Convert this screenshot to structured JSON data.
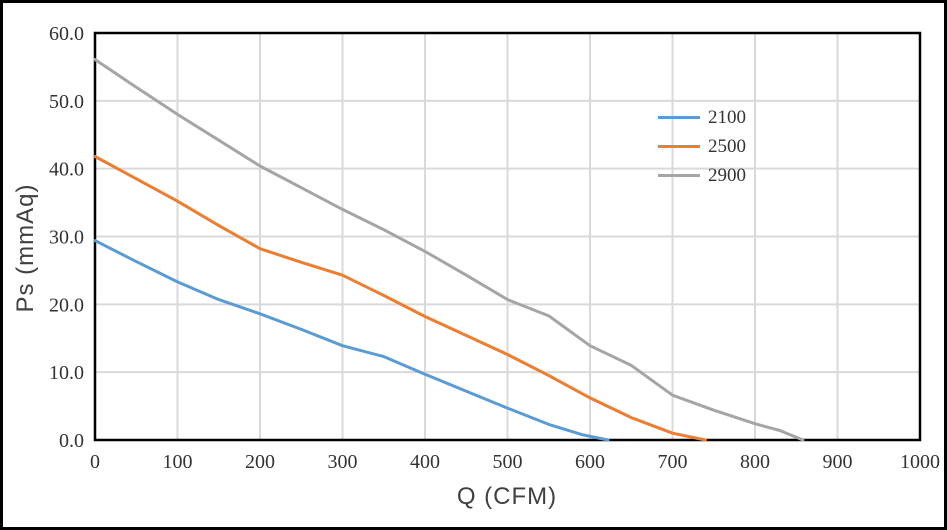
{
  "chart_data": {
    "type": "line",
    "title": "",
    "xlabel": "Q（CFM）",
    "ylabel": "Ps（mmAq）",
    "xlim": [
      0,
      1000
    ],
    "ylim": [
      0,
      60
    ],
    "xticks": [
      0,
      100,
      200,
      300,
      400,
      500,
      600,
      700,
      800,
      900,
      1000
    ],
    "xtick_labels": [
      "0",
      "100",
      "200",
      "300",
      "400",
      "500",
      "600",
      "700",
      "800",
      "900",
      "1000"
    ],
    "yticks": [
      0,
      10,
      20,
      30,
      40,
      50,
      60
    ],
    "ytick_labels": [
      "0.0",
      "10.0",
      "20.0",
      "30.0",
      "40.0",
      "50.0",
      "60.0"
    ],
    "grid": true,
    "legend_position": "inside-upper-right",
    "series": [
      {
        "name": "2100",
        "color": "#5B9BD5",
        "points": [
          [
            0,
            29.4
          ],
          [
            50,
            26.3
          ],
          [
            100,
            23.3
          ],
          [
            150,
            20.7
          ],
          [
            200,
            18.6
          ],
          [
            250,
            16.3
          ],
          [
            300,
            13.9
          ],
          [
            350,
            12.3
          ],
          [
            400,
            9.7
          ],
          [
            450,
            7.2
          ],
          [
            500,
            4.7
          ],
          [
            550,
            2.3
          ],
          [
            590,
            0.8
          ],
          [
            622,
            0
          ]
        ]
      },
      {
        "name": "2500",
        "color": "#ED7D31",
        "points": [
          [
            0,
            41.8
          ],
          [
            50,
            38.5
          ],
          [
            100,
            35.2
          ],
          [
            150,
            31.6
          ],
          [
            200,
            28.2
          ],
          [
            250,
            26.2
          ],
          [
            300,
            24.3
          ],
          [
            350,
            21.3
          ],
          [
            400,
            18.2
          ],
          [
            450,
            15.4
          ],
          [
            500,
            12.6
          ],
          [
            550,
            9.5
          ],
          [
            600,
            6.2
          ],
          [
            650,
            3.3
          ],
          [
            700,
            1.0
          ],
          [
            740,
            0
          ]
        ]
      },
      {
        "name": "2900",
        "color": "#A5A5A5",
        "points": [
          [
            0,
            56.1
          ],
          [
            50,
            52.0
          ],
          [
            100,
            48.0
          ],
          [
            150,
            44.2
          ],
          [
            200,
            40.4
          ],
          [
            250,
            37.2
          ],
          [
            300,
            34.0
          ],
          [
            350,
            31.0
          ],
          [
            400,
            27.8
          ],
          [
            450,
            24.3
          ],
          [
            500,
            20.7
          ],
          [
            550,
            18.3
          ],
          [
            600,
            13.9
          ],
          [
            650,
            11.0
          ],
          [
            700,
            6.6
          ],
          [
            750,
            4.4
          ],
          [
            800,
            2.4
          ],
          [
            830,
            1.4
          ],
          [
            858,
            0
          ]
        ]
      }
    ]
  },
  "colors": {
    "grid": "#D9D9D9",
    "axis_frame": "#000000",
    "tick_text": "#333333",
    "title_text": "#404040",
    "background": "#FFFFFF",
    "outer_border": "#000000"
  }
}
